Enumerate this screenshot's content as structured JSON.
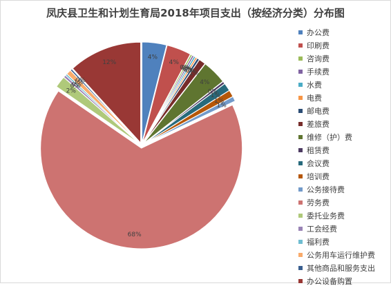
{
  "chart_data": {
    "type": "pie",
    "title": "凤庆县卫生和计划生育局2018年项目支出（按经济分类）分布图",
    "legend_position": "right",
    "slices": [
      {
        "name": "办公费",
        "value": 4,
        "label": "4%",
        "color": "#4f81bd"
      },
      {
        "name": "印刷费",
        "value": 4,
        "label": "4%",
        "color": "#c0504d"
      },
      {
        "name": "咨询费",
        "value": 0.3,
        "label": "0%",
        "color": "#9bbb59"
      },
      {
        "name": "手续费",
        "value": 0.3,
        "label": "0%",
        "color": "#8064a2"
      },
      {
        "name": "水费",
        "value": 0.3,
        "label": "0%",
        "color": "#4bacc6"
      },
      {
        "name": "电费",
        "value": 0.3,
        "label": "0%",
        "color": "#f79646"
      },
      {
        "name": "邮电费",
        "value": 0.4,
        "label": "0%",
        "color": "#2c4d75"
      },
      {
        "name": "差旅费",
        "value": 1.1,
        "label": "1%",
        "color": "#772c2a"
      },
      {
        "name": "维修（护）费",
        "value": 4,
        "label": "4%",
        "color": "#5f7530"
      },
      {
        "name": "租赁费",
        "value": 0.4,
        "label": "0%",
        "color": "#4d3b62"
      },
      {
        "name": "会议费",
        "value": 1.3,
        "label": "1%",
        "color": "#276a7c"
      },
      {
        "name": "培训费",
        "value": 1.1,
        "label": "1%",
        "color": "#b65708"
      },
      {
        "name": "公务接待费",
        "value": 0.8,
        "label": "1%",
        "color": "#729aca"
      },
      {
        "name": "劳务费",
        "value": 68,
        "label": "68%",
        "color": "#cd7371"
      },
      {
        "name": "委托业务费",
        "value": 1.9,
        "label": "2%",
        "color": "#afc97a"
      },
      {
        "name": "工会经费",
        "value": 0.4,
        "label": "0%",
        "color": "#9983b5"
      },
      {
        "name": "福利费",
        "value": 0.3,
        "label": "0%",
        "color": "#6fbdd1"
      },
      {
        "name": "公务用车运行维护费",
        "value": 0.8,
        "label": "1%",
        "color": "#f9ab6b"
      },
      {
        "name": "其他商品和服务支出",
        "value": 0.3,
        "label": "0%",
        "color": "#3a5f8f"
      },
      {
        "name": "办公设备购置",
        "value": 12,
        "label": "12%",
        "color": "#993835"
      }
    ]
  }
}
